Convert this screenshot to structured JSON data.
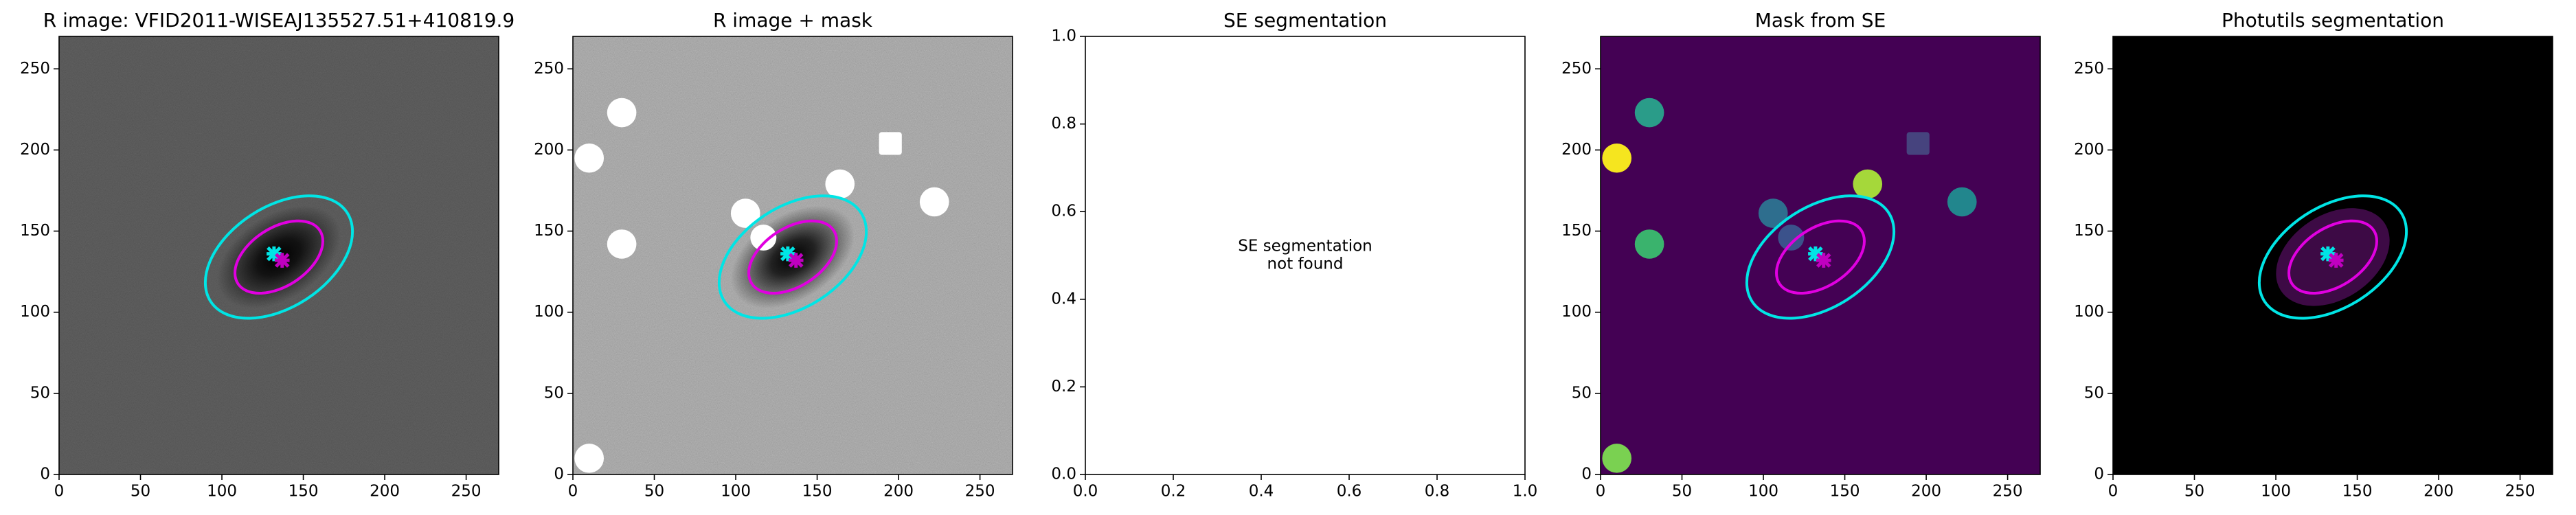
{
  "chart_data": [
    {
      "type": "image",
      "title": "R image: VFID2011-WISEAJ135527.51+410819.9",
      "xlim": [
        0,
        270
      ],
      "ylim": [
        0,
        270
      ],
      "xticks": [
        0,
        50,
        100,
        150,
        200,
        250
      ],
      "yticks": [
        0,
        50,
        100,
        150,
        200,
        250
      ],
      "color": "#5a5a5a",
      "noise": true,
      "galaxy": true,
      "ellipses": [
        {
          "x": 135,
          "y": 134,
          "width": 100,
          "height": 62,
          "angle": -33,
          "color": "#00e5e5"
        },
        {
          "x": 135,
          "y": 134,
          "width": 60,
          "height": 36,
          "angle": -33,
          "color": "#e000e0"
        }
      ],
      "markers": [
        {
          "x": 132,
          "y": 136,
          "color": "#00e5e5"
        },
        {
          "x": 137,
          "y": 132,
          "color": "#c000c0"
        }
      ]
    },
    {
      "type": "image",
      "title": "R image + mask",
      "xlim": [
        0,
        270
      ],
      "ylim": [
        0,
        270
      ],
      "xticks": [
        0,
        50,
        100,
        150,
        200,
        250
      ],
      "yticks": [
        0,
        50,
        100,
        150,
        200,
        250
      ],
      "color": "#a8a8a8",
      "noise": true,
      "galaxy": true,
      "masks": [
        {
          "x": 30,
          "y": 223,
          "r": 9,
          "color": "#ffffff"
        },
        {
          "x": 10,
          "y": 195,
          "r": 9,
          "color": "#ffffff"
        },
        {
          "x": 30,
          "y": 142,
          "r": 9,
          "color": "#ffffff"
        },
        {
          "x": 164,
          "y": 179,
          "r": 9,
          "color": "#ffffff"
        },
        {
          "x": 222,
          "y": 168,
          "r": 9,
          "color": "#ffffff"
        },
        {
          "x": 106,
          "y": 161,
          "r": 9,
          "color": "#ffffff"
        },
        {
          "x": 117,
          "y": 146,
          "r": 8,
          "color": "#ffffff"
        },
        {
          "x": 10,
          "y": 10,
          "r": 9,
          "color": "#ffffff"
        },
        {
          "x": 195,
          "y": 204,
          "r": 7,
          "color": "#ffffff",
          "shape": "square"
        }
      ],
      "ellipses": [
        {
          "x": 135,
          "y": 134,
          "width": 100,
          "height": 62,
          "angle": -33,
          "color": "#00e5e5"
        },
        {
          "x": 135,
          "y": 134,
          "width": 60,
          "height": 36,
          "angle": -33,
          "color": "#e000e0"
        }
      ],
      "markers": [
        {
          "x": 132,
          "y": 136,
          "color": "#00e5e5"
        },
        {
          "x": 137,
          "y": 132,
          "color": "#c000c0"
        }
      ]
    },
    {
      "type": "empty",
      "title": "SE segmentation",
      "xlim": [
        0,
        1
      ],
      "ylim": [
        0,
        1
      ],
      "xticks": [
        {
          "value": 0,
          "label": "0.0"
        },
        {
          "value": 0.2,
          "label": "0.2"
        },
        {
          "value": 0.4,
          "label": "0.4"
        },
        {
          "value": 0.6,
          "label": "0.6"
        },
        {
          "value": 0.8,
          "label": "0.8"
        },
        {
          "value": 1,
          "label": "1.0"
        }
      ],
      "yticks": [
        {
          "value": 0,
          "label": "0.0"
        },
        {
          "value": 0.2,
          "label": "0.2"
        },
        {
          "value": 0.4,
          "label": "0.4"
        },
        {
          "value": 0.6,
          "label": "0.6"
        },
        {
          "value": 0.8,
          "label": "0.8"
        },
        {
          "value": 1,
          "label": "1.0"
        }
      ],
      "color": "#ffffff",
      "annotation": [
        "SE segmentation",
        "not found"
      ]
    },
    {
      "type": "image",
      "title": "Mask from SE",
      "xlim": [
        0,
        270
      ],
      "ylim": [
        0,
        270
      ],
      "xticks": [
        0,
        50,
        100,
        150,
        200,
        250
      ],
      "yticks": [
        0,
        50,
        100,
        150,
        200,
        250
      ],
      "color": "#440154",
      "masks": [
        {
          "x": 30,
          "y": 223,
          "r": 9,
          "color": "#2a9c89"
        },
        {
          "x": 10,
          "y": 195,
          "r": 9,
          "color": "#f5e51f"
        },
        {
          "x": 30,
          "y": 142,
          "r": 9,
          "color": "#3ab36d"
        },
        {
          "x": 164,
          "y": 179,
          "r": 9,
          "color": "#a5d83a"
        },
        {
          "x": 222,
          "y": 168,
          "r": 9,
          "color": "#22868d"
        },
        {
          "x": 106,
          "y": 161,
          "r": 9,
          "color": "#2e6e8e"
        },
        {
          "x": 117,
          "y": 146,
          "r": 8,
          "color": "#3b528b"
        },
        {
          "x": 10,
          "y": 10,
          "r": 9,
          "color": "#7ad151"
        },
        {
          "x": 195,
          "y": 204,
          "r": 7,
          "color": "#46437e",
          "shape": "square"
        }
      ],
      "ellipses": [
        {
          "x": 135,
          "y": 134,
          "width": 100,
          "height": 62,
          "angle": -33,
          "color": "#00e5e5"
        },
        {
          "x": 135,
          "y": 134,
          "width": 60,
          "height": 36,
          "angle": -33,
          "color": "#e000e0"
        }
      ],
      "markers": [
        {
          "x": 132,
          "y": 136,
          "color": "#00e5e5"
        },
        {
          "x": 137,
          "y": 132,
          "color": "#c000c0"
        }
      ]
    },
    {
      "type": "image",
      "title": "Photutils segmentation",
      "xlim": [
        0,
        270
      ],
      "ylim": [
        0,
        270
      ],
      "xticks": [
        0,
        50,
        100,
        150,
        200,
        250
      ],
      "yticks": [
        0,
        50,
        100,
        150,
        200,
        250
      ],
      "color": "#000000",
      "segment": "#3d0a45",
      "ellipses": [
        {
          "x": 135,
          "y": 134,
          "width": 100,
          "height": 62,
          "angle": -33,
          "color": "#00e5e5"
        },
        {
          "x": 135,
          "y": 134,
          "width": 60,
          "height": 36,
          "angle": -33,
          "color": "#e000e0"
        }
      ],
      "markers": [
        {
          "x": 132,
          "y": 136,
          "color": "#00e5e5"
        },
        {
          "x": 137,
          "y": 132,
          "color": "#c000c0"
        }
      ]
    }
  ]
}
